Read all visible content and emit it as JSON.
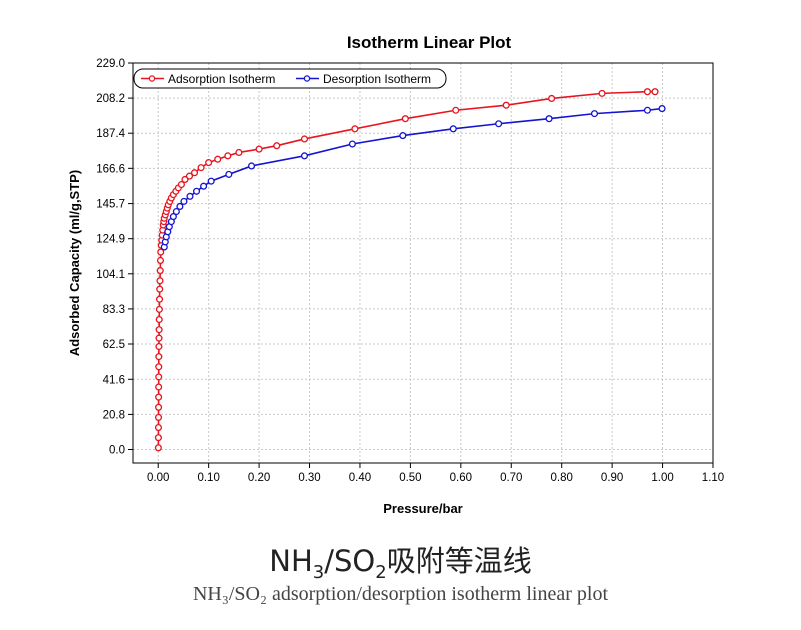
{
  "chart_data": {
    "type": "line",
    "title": "Isotherm Linear Plot",
    "xlabel": "Pressure/bar",
    "ylabel": "Adsorbed Capacity (ml/g,STP)",
    "xlim": [
      -0.05,
      1.1
    ],
    "ylim": [
      -8,
      229
    ],
    "x_ticks": [
      0.0,
      0.1,
      0.2,
      0.3,
      0.4,
      0.5,
      0.6,
      0.7,
      0.8,
      0.9,
      1.0,
      1.1
    ],
    "x_tick_labels": [
      "0.00",
      "0.10",
      "0.20",
      "0.30",
      "0.40",
      "0.50",
      "0.60",
      "0.70",
      "0.80",
      "0.90",
      "1.00",
      "1.10"
    ],
    "y_ticks": [
      0.0,
      20.8,
      41.6,
      62.5,
      83.3,
      104.1,
      124.9,
      145.7,
      166.6,
      187.4,
      208.2,
      229.0
    ],
    "y_tick_labels": [
      "0.0",
      "20.8",
      "41.6",
      "62.5",
      "83.3",
      "104.1",
      "124.9",
      "145.7",
      "166.6",
      "187.4",
      "208.2",
      "229.0"
    ],
    "grid": true,
    "legend_position": "top-left",
    "series": [
      {
        "name": "Adsorption Isotherm",
        "color": "#e8141e",
        "x": [
          0.0003,
          0.0004,
          0.0005,
          0.0006,
          0.0007,
          0.0008,
          0.0009,
          0.001,
          0.0011,
          0.0012,
          0.0014,
          0.0016,
          0.0018,
          0.002,
          0.0023,
          0.0026,
          0.003,
          0.0035,
          0.004,
          0.0045,
          0.005,
          0.006,
          0.007,
          0.008,
          0.009,
          0.01,
          0.011,
          0.012,
          0.014,
          0.016,
          0.018,
          0.02,
          0.023,
          0.026,
          0.03,
          0.035,
          0.04,
          0.046,
          0.053,
          0.062,
          0.072,
          0.085,
          0.1,
          0.118,
          0.138,
          0.16,
          0.2,
          0.235,
          0.29,
          0.39,
          0.49,
          0.59,
          0.69,
          0.78,
          0.88,
          0.97,
          0.985
        ],
        "y": [
          1,
          7,
          13,
          19,
          25,
          31,
          37,
          43,
          49,
          55,
          61,
          66,
          71,
          77,
          83,
          89,
          95,
          100,
          106,
          112,
          117,
          121,
          124,
          127,
          130,
          133,
          135,
          137,
          139,
          141,
          143,
          145,
          147,
          149,
          151,
          153,
          155,
          157,
          160,
          162,
          164,
          167,
          170,
          172,
          174,
          176,
          178,
          180,
          184,
          190,
          196,
          201,
          204,
          208,
          211,
          212,
          212
        ]
      },
      {
        "name": "Desorption Isotherm",
        "color": "#1414d2",
        "x": [
          0.012,
          0.014,
          0.016,
          0.019,
          0.022,
          0.026,
          0.03,
          0.036,
          0.043,
          0.051,
          0.063,
          0.076,
          0.09,
          0.105,
          0.14,
          0.185,
          0.29,
          0.385,
          0.485,
          0.585,
          0.675,
          0.775,
          0.865,
          0.97,
          0.999
        ],
        "y": [
          120,
          123,
          126,
          129,
          132,
          135,
          138,
          141,
          144,
          147,
          150,
          153,
          156,
          159,
          163,
          168,
          174,
          181,
          186,
          190,
          193,
          196,
          199,
          201,
          202
        ]
      }
    ]
  },
  "caption": {
    "cn_prefix": "NH",
    "cn_sub1": "3",
    "cn_mid": "/SO",
    "cn_sub2": "2",
    "cn_text": "吸附等温线",
    "en": "NH₃/SO₂ adsorption/desorption isotherm linear plot"
  }
}
